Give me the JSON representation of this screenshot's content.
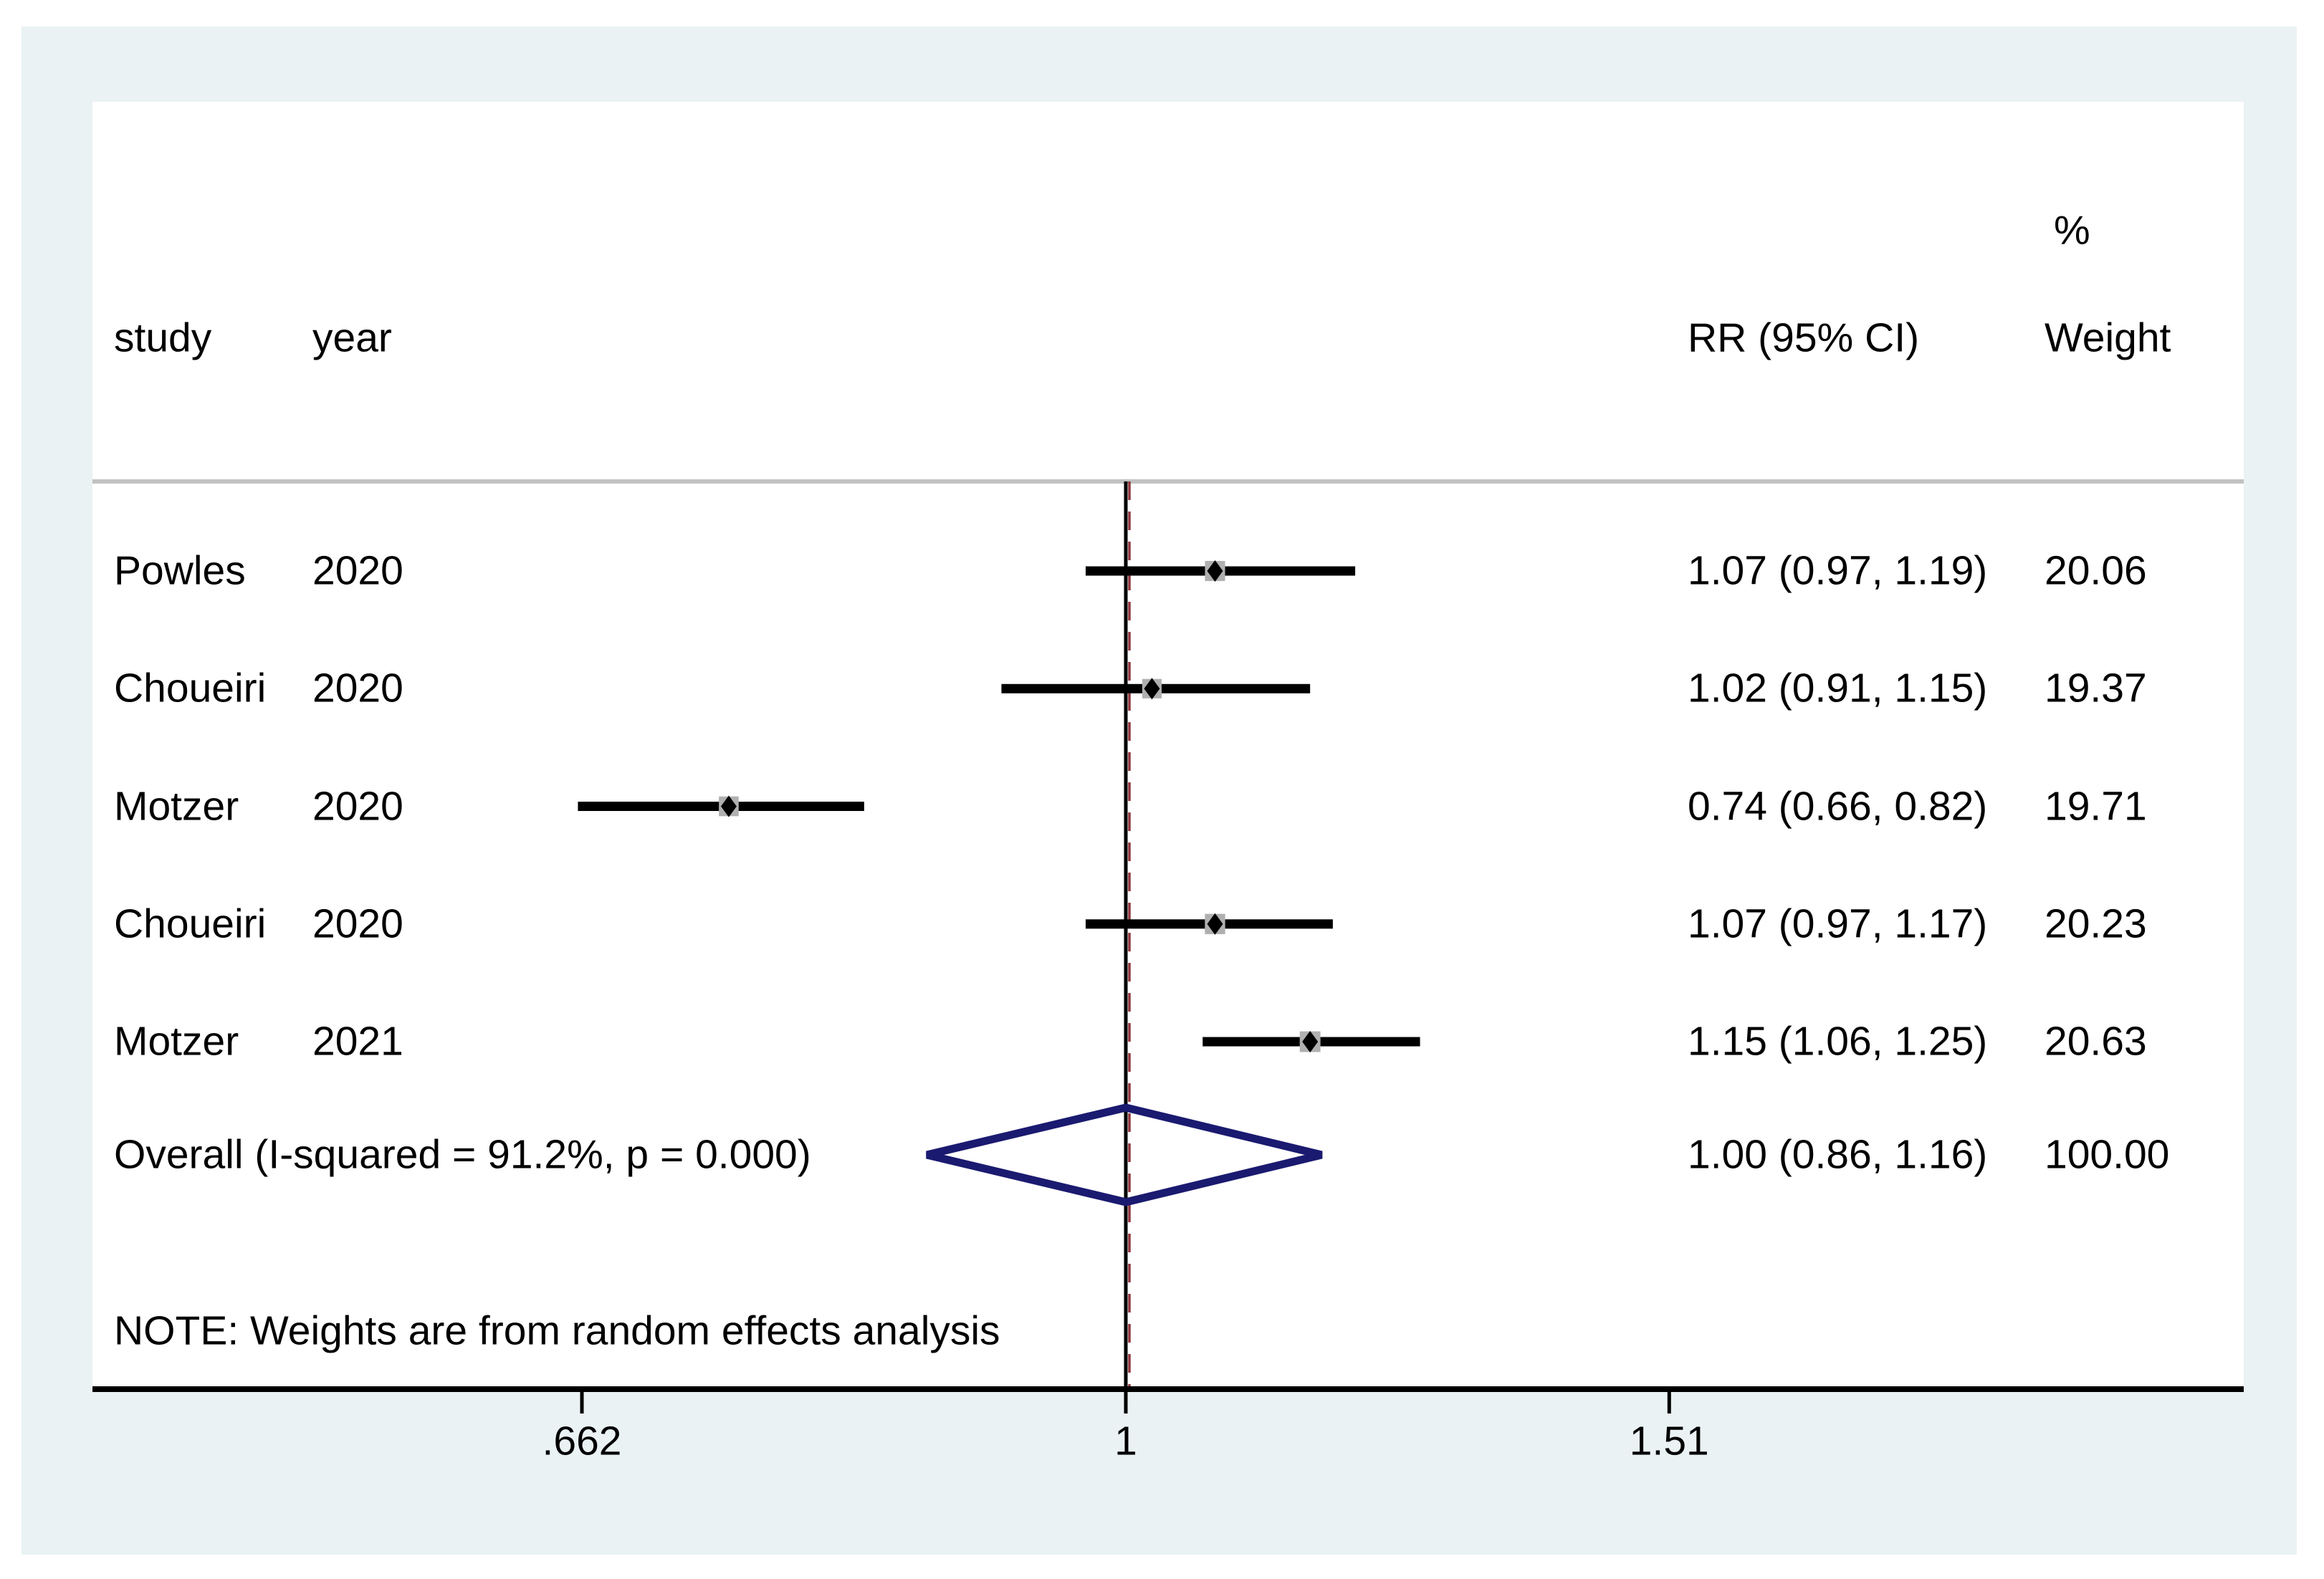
{
  "chart_data": {
    "type": "forest",
    "title": "",
    "headers": {
      "study": "study",
      "year": "year",
      "percent": "%",
      "rr": "RR (95% CI)",
      "weight": "Weight"
    },
    "studies": [
      {
        "study": "Powles",
        "year": "2020",
        "rr": 1.07,
        "ci_low": 0.97,
        "ci_high": 1.19,
        "weight": 20.06,
        "rr_text": "1.07 (0.97, 1.19)",
        "weight_text": "20.06"
      },
      {
        "study": "Choueiri",
        "year": "2020",
        "rr": 1.02,
        "ci_low": 0.91,
        "ci_high": 1.15,
        "weight": 19.37,
        "rr_text": "1.02 (0.91, 1.15)",
        "weight_text": "19.37"
      },
      {
        "study": "Motzer",
        "year": "2020",
        "rr": 0.74,
        "ci_low": 0.66,
        "ci_high": 0.82,
        "weight": 19.71,
        "rr_text": "0.74 (0.66, 0.82)",
        "weight_text": "19.71"
      },
      {
        "study": "Choueiri",
        "year": "2020",
        "rr": 1.07,
        "ci_low": 0.97,
        "ci_high": 1.17,
        "weight": 20.23,
        "rr_text": "1.07 (0.97, 1.17)",
        "weight_text": "20.23"
      },
      {
        "study": "Motzer",
        "year": "2021",
        "rr": 1.15,
        "ci_low": 1.06,
        "ci_high": 1.25,
        "weight": 20.63,
        "rr_text": "1.15 (1.06, 1.25)",
        "weight_text": "20.63"
      }
    ],
    "overall": {
      "label": "Overall  (I-squared = 91.2%, p = 0.000)",
      "rr": 1.0,
      "ci_low": 0.86,
      "ci_high": 1.16,
      "weight": 100.0,
      "rr_text": "1.00 (0.86, 1.16)",
      "weight_text": "100.00",
      "i_squared": "91.2%",
      "p_value": "0.000"
    },
    "note": "NOTE: Weights are from random effects analysis",
    "axis": {
      "scale": "log",
      "null_value": 1,
      "xlim": [
        0.46,
        2.33
      ],
      "ticks": [
        {
          "value": 0.662,
          "label": ".662"
        },
        {
          "value": 1,
          "label": "1"
        },
        {
          "value": 1.51,
          "label": "1.51"
        }
      ]
    },
    "colors": {
      "panel_background": "#eaf2f3",
      "plot_background": "#ffffff",
      "ci_line": "#000000",
      "point_marker": "#000000",
      "weight_square": "#b0b0b0",
      "overall_diamond": "#1a1a70",
      "overall_dashed_line": "#90353b",
      "header_separator": "#c2c2c2",
      "axis_line": "#000000"
    }
  }
}
